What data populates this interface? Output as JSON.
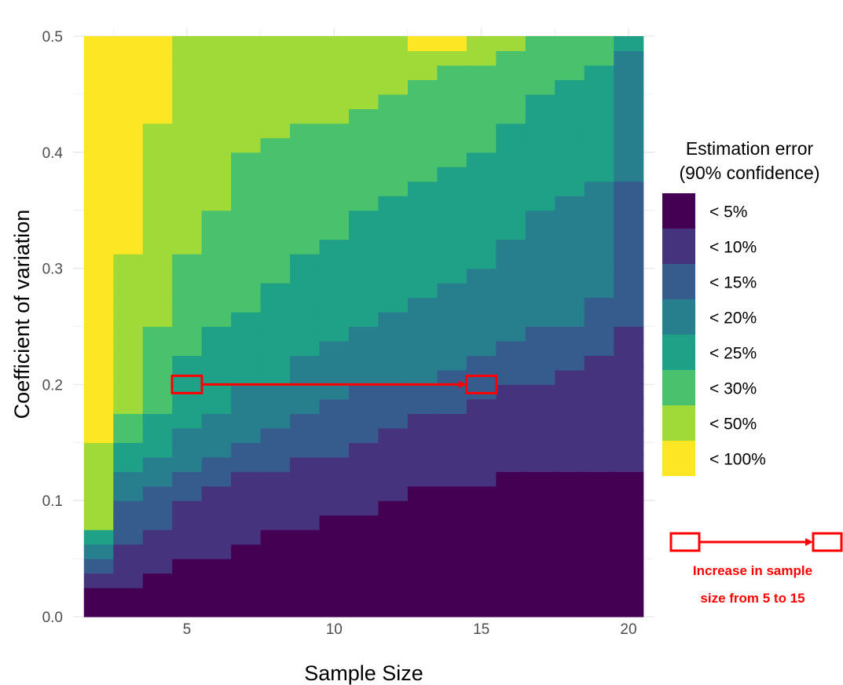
{
  "chart_data": {
    "type": "heatmap",
    "xlabel": "Sample Size",
    "ylabel": "Coefficient of variation",
    "x_ticks": [
      5,
      10,
      15,
      20
    ],
    "y_ticks": [
      "0.0",
      "0.1",
      "0.2",
      "0.3",
      "0.4",
      "0.5"
    ],
    "xlim": [
      1.5,
      20.5
    ],
    "ylim": [
      0,
      0.5
    ],
    "y_cell_size": 0.0125,
    "grid": true,
    "legend": {
      "title_line1": "Estimation error",
      "title_line2": "(90% confidence)",
      "placement": "right",
      "levels": [
        {
          "label": "< 5%",
          "color": "#440154"
        },
        {
          "label": "< 10%",
          "color": "#46337e"
        },
        {
          "label": "< 15%",
          "color": "#365c8d"
        },
        {
          "label": "< 20%",
          "color": "#277f8e"
        },
        {
          "label": "< 25%",
          "color": "#1fa187"
        },
        {
          "label": "< 30%",
          "color": "#4ac16d"
        },
        {
          "label": "< 50%",
          "color": "#a0da39"
        },
        {
          "label": "< 100%",
          "color": "#fde725"
        }
      ]
    },
    "columns": [
      {
        "n": 2,
        "upper_bounds": [
          0.025,
          0.035,
          0.045,
          0.06,
          0.072,
          0.08,
          0.155,
          0.5
        ]
      },
      {
        "n": 3,
        "upper_bounds": [
          0.03,
          0.06,
          0.095,
          0.12,
          0.145,
          0.18,
          0.315,
          0.5
        ]
      },
      {
        "n": 4,
        "upper_bounds": [
          0.04,
          0.08,
          0.108,
          0.132,
          0.17,
          0.245,
          0.42,
          0.5
        ]
      },
      {
        "n": 5,
        "upper_bounds": [
          0.055,
          0.095,
          0.12,
          0.16,
          0.22,
          0.31,
          0.495,
          0.5
        ]
      },
      {
        "n": 6,
        "upper_bounds": [
          0.055,
          0.11,
          0.135,
          0.175,
          0.245,
          0.345,
          0.495,
          0.5
        ]
      },
      {
        "n": 7,
        "upper_bounds": [
          0.068,
          0.12,
          0.145,
          0.195,
          0.26,
          0.395,
          0.495,
          0.5
        ]
      },
      {
        "n": 8,
        "upper_bounds": [
          0.08,
          0.13,
          0.158,
          0.205,
          0.285,
          0.41,
          0.5,
          0.5
        ]
      },
      {
        "n": 9,
        "upper_bounds": [
          0.08,
          0.135,
          0.17,
          0.22,
          0.315,
          0.425,
          0.5,
          0.5
        ]
      },
      {
        "n": 10,
        "upper_bounds": [
          0.093,
          0.143,
          0.182,
          0.232,
          0.33,
          0.43,
          0.5,
          0.5
        ]
      },
      {
        "n": 11,
        "upper_bounds": [
          0.093,
          0.145,
          0.195,
          0.245,
          0.345,
          0.44,
          0.5,
          0.5
        ]
      },
      {
        "n": 12,
        "upper_bounds": [
          0.1,
          0.158,
          0.205,
          0.258,
          0.36,
          0.448,
          0.5,
          0.5
        ]
      },
      {
        "n": 13,
        "upper_bounds": [
          0.107,
          0.17,
          0.205,
          0.27,
          0.38,
          0.46,
          0.49,
          0.5
        ]
      },
      {
        "n": 14,
        "upper_bounds": [
          0.107,
          0.17,
          0.215,
          0.285,
          0.39,
          0.47,
          0.49,
          0.5
        ]
      },
      {
        "n": 15,
        "upper_bounds": [
          0.107,
          0.182,
          0.22,
          0.305,
          0.405,
          0.48,
          0.5,
          0.5
        ]
      },
      {
        "n": 16,
        "upper_bounds": [
          0.12,
          0.195,
          0.235,
          0.33,
          0.42,
          0.49,
          0.5,
          0.5
        ]
      },
      {
        "n": 17,
        "upper_bounds": [
          0.12,
          0.205,
          0.245,
          0.345,
          0.45,
          0.5,
          0.5,
          0.5
        ]
      },
      {
        "n": 18,
        "upper_bounds": [
          0.12,
          0.21,
          0.255,
          0.36,
          0.46,
          0.5,
          0.5,
          0.5
        ]
      },
      {
        "n": 19,
        "upper_bounds": [
          0.13,
          0.23,
          0.27,
          0.38,
          0.475,
          0.5,
          0.5,
          0.5
        ]
      },
      {
        "n": 20,
        "upper_bounds": [
          0.13,
          0.255,
          0.38,
          0.49,
          0.5,
          0.5,
          0.5,
          0.5
        ]
      }
    ],
    "annotation": {
      "from_x": 5,
      "to_x": 15,
      "y": 0.2,
      "color": "#ff0000",
      "legend_text_line1": "Increase in sample",
      "legend_text_line2": "size from 5 to 15"
    }
  }
}
